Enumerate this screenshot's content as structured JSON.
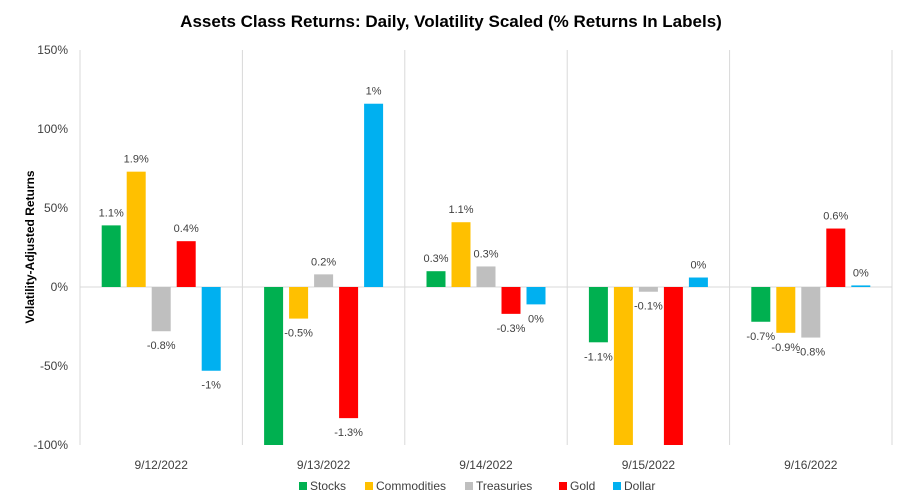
{
  "chart_data": {
    "type": "bar",
    "title": "Assets Class Returns: Daily, Volatility Scaled (% Returns In Labels)",
    "ylabel": "Volatility-Adjusted Returns",
    "xlabel": "",
    "ylim": [
      -100,
      150
    ],
    "y_ticks": [
      "-100%",
      "-50%",
      "0%",
      "50%",
      "100%",
      "150%"
    ],
    "y_tick_values": [
      -100,
      -50,
      0,
      50,
      100,
      150
    ],
    "categories": [
      "9/12/2022",
      "9/13/2022",
      "9/14/2022",
      "9/15/2022",
      "9/16/2022"
    ],
    "legend_position": "bottom",
    "gridlines": false,
    "category_separators": true,
    "series": [
      {
        "name": "Stocks",
        "color": "#00B050",
        "values": [
          39,
          -100,
          10,
          -35,
          -22
        ],
        "labels": [
          "1.1%",
          "",
          "0.3%",
          "-1.1%",
          "-0.7%"
        ]
      },
      {
        "name": "Commodities",
        "color": "#FFC000",
        "values": [
          73,
          -20,
          41,
          -100,
          -29
        ],
        "labels": [
          "1.9%",
          "-0.5%",
          "1.1%",
          "",
          "-0.9%"
        ]
      },
      {
        "name": "Treasuries",
        "color": "#BFBFBF",
        "values": [
          -28,
          8,
          13,
          -3,
          -32
        ],
        "labels": [
          "-0.8%",
          "0.2%",
          "0.3%",
          "-0.1%",
          "-0.8%"
        ]
      },
      {
        "name": "Gold",
        "color": "#FF0000",
        "values": [
          29,
          -83,
          -17,
          -100,
          37
        ],
        "labels": [
          "0.4%",
          "-1.3%",
          "-0.3%",
          "",
          "0.6%"
        ]
      },
      {
        "name": "Dollar",
        "color": "#00B0F0",
        "values": [
          -53,
          116,
          -11,
          6,
          1
        ],
        "labels": [
          "-1%",
          "1%",
          "0%",
          "0%",
          "0%"
        ]
      }
    ]
  }
}
